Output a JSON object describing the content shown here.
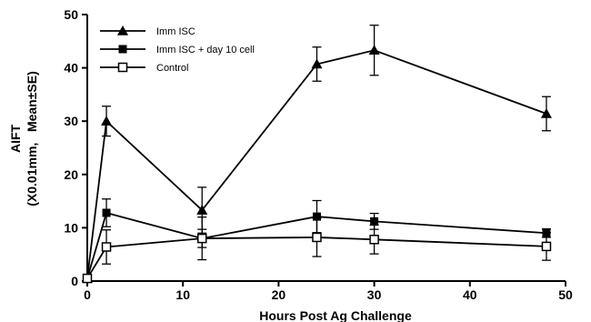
{
  "chart_data": {
    "type": "line",
    "title": "",
    "xlabel": "Hours Post Ag Challenge",
    "ylabel_lines": [
      "AIFT",
      "(X0.01mm,   Mean±SE)"
    ],
    "xlim": [
      0,
      50
    ],
    "ylim": [
      0,
      50
    ],
    "xticks": [
      0,
      10,
      20,
      30,
      40,
      50
    ],
    "yticks": [
      0,
      10,
      20,
      30,
      40,
      50
    ],
    "grid": false,
    "legend_position": "top-left",
    "x": [
      0,
      2,
      12,
      24,
      30,
      48
    ],
    "series": [
      {
        "name": "Imm ISC",
        "marker": "filled-triangle",
        "color": "#000000",
        "values": [
          0.5,
          30,
          13.3,
          40.7,
          43.3,
          31.4
        ],
        "errors": [
          0,
          2.8,
          4.3,
          3.2,
          4.7,
          3.2
        ]
      },
      {
        "name": "Imm ISC + day 10 cell",
        "marker": "filled-square",
        "color": "#000000",
        "values": [
          0.5,
          12.8,
          8.0,
          12.1,
          11.2,
          9.0
        ],
        "errors": [
          0,
          2.6,
          1.7,
          3.0,
          1.5,
          0.8
        ]
      },
      {
        "name": "Control",
        "marker": "open-square",
        "color": "#000000",
        "values": [
          0.5,
          6.4,
          8.0,
          8.2,
          7.8,
          6.5
        ],
        "errors": [
          0,
          3.2,
          4.0,
          3.6,
          2.7,
          2.6
        ]
      }
    ]
  }
}
